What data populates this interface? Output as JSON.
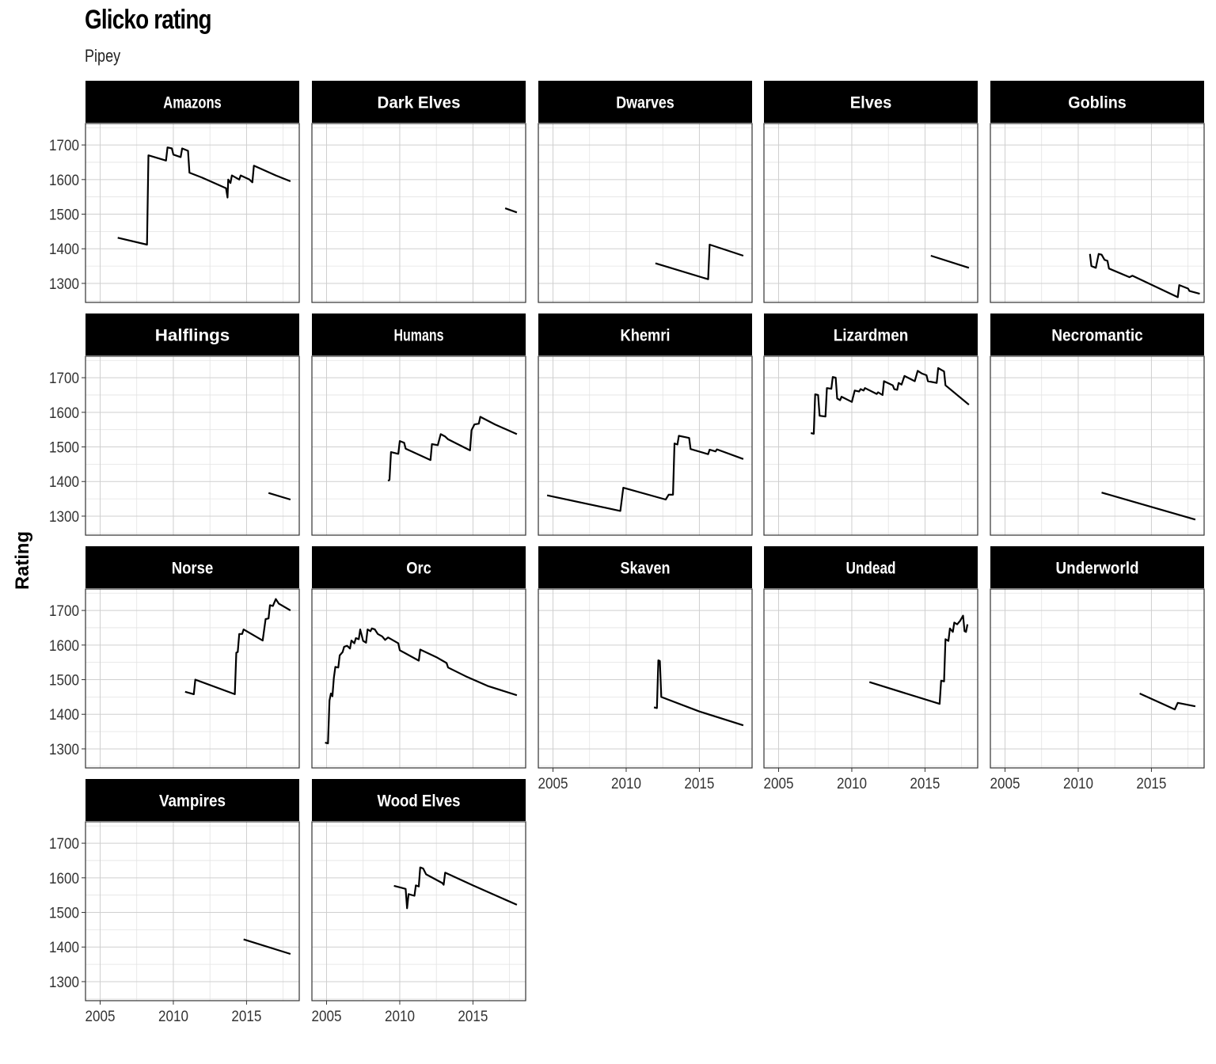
{
  "title": "Glicko rating",
  "subtitle": "Pipey",
  "colors": {
    "line": "#000000",
    "strip": "#000000",
    "strip_text": "#ffffff",
    "grid": "#cfcfcf",
    "border": "#333333"
  },
  "chart_data": {
    "type": "line",
    "ylabel": "Rating",
    "xlabel": "",
    "xlim": [
      2004,
      2018.6
    ],
    "ylim": [
      1245,
      1762
    ],
    "x_ticks": [
      2005,
      2010,
      2015
    ],
    "y_ticks": [
      1300,
      1400,
      1500,
      1600,
      1700
    ],
    "grid": true,
    "panels": [
      {
        "name": "Amazons",
        "points": [
          [
            2006.2,
            1432
          ],
          [
            2008.2,
            1412
          ],
          [
            2008.3,
            1670
          ],
          [
            2009.5,
            1655
          ],
          [
            2009.6,
            1693
          ],
          [
            2009.9,
            1690
          ],
          [
            2010.0,
            1672
          ],
          [
            2010.5,
            1665
          ],
          [
            2010.6,
            1690
          ],
          [
            2011.0,
            1683
          ],
          [
            2011.1,
            1620
          ],
          [
            2012.0,
            1605
          ],
          [
            2013.6,
            1575
          ],
          [
            2013.7,
            1548
          ],
          [
            2013.75,
            1600
          ],
          [
            2013.9,
            1590
          ],
          [
            2014.0,
            1612
          ],
          [
            2014.5,
            1600
          ],
          [
            2014.6,
            1612
          ],
          [
            2015.2,
            1600
          ],
          [
            2015.4,
            1592
          ],
          [
            2015.5,
            1640
          ],
          [
            2017.0,
            1612
          ],
          [
            2018.0,
            1595
          ]
        ]
      },
      {
        "name": "Dark Elves",
        "points": [
          [
            2017.2,
            1517
          ],
          [
            2018.0,
            1505
          ]
        ]
      },
      {
        "name": "Dwarves",
        "points": [
          [
            2012.0,
            1358
          ],
          [
            2015.6,
            1312
          ],
          [
            2015.7,
            1412
          ],
          [
            2018.0,
            1380
          ]
        ]
      },
      {
        "name": "Elves",
        "points": [
          [
            2015.4,
            1380
          ],
          [
            2018.0,
            1345
          ]
        ]
      },
      {
        "name": "Goblins",
        "points": [
          [
            2010.8,
            1385
          ],
          [
            2010.9,
            1350
          ],
          [
            2011.2,
            1345
          ],
          [
            2011.4,
            1385
          ],
          [
            2011.6,
            1383
          ],
          [
            2011.8,
            1368
          ],
          [
            2012.0,
            1365
          ],
          [
            2012.1,
            1343
          ],
          [
            2013.5,
            1318
          ],
          [
            2013.7,
            1322
          ],
          [
            2016.8,
            1260
          ],
          [
            2016.9,
            1295
          ],
          [
            2017.5,
            1285
          ],
          [
            2017.6,
            1278
          ],
          [
            2018.3,
            1270
          ]
        ]
      },
      {
        "name": "Halflings",
        "points": [
          [
            2016.5,
            1367
          ],
          [
            2018.0,
            1348
          ]
        ]
      },
      {
        "name": "Humans",
        "points": [
          [
            2009.2,
            1402
          ],
          [
            2009.3,
            1405
          ],
          [
            2009.4,
            1485
          ],
          [
            2009.9,
            1480
          ],
          [
            2010.0,
            1517
          ],
          [
            2010.3,
            1512
          ],
          [
            2010.4,
            1495
          ],
          [
            2012.1,
            1462
          ],
          [
            2012.2,
            1508
          ],
          [
            2012.6,
            1505
          ],
          [
            2012.8,
            1537
          ],
          [
            2013.1,
            1530
          ],
          [
            2013.3,
            1522
          ],
          [
            2014.8,
            1490
          ],
          [
            2014.9,
            1548
          ],
          [
            2015.1,
            1565
          ],
          [
            2015.4,
            1567
          ],
          [
            2015.5,
            1587
          ],
          [
            2016.5,
            1565
          ],
          [
            2018.0,
            1537
          ]
        ]
      },
      {
        "name": "Khemri",
        "points": [
          [
            2004.6,
            1360
          ],
          [
            2009.6,
            1315
          ],
          [
            2009.8,
            1382
          ],
          [
            2012.7,
            1348
          ],
          [
            2012.9,
            1362
          ],
          [
            2013.2,
            1362
          ],
          [
            2013.3,
            1510
          ],
          [
            2013.5,
            1507
          ],
          [
            2013.6,
            1532
          ],
          [
            2014.3,
            1526
          ],
          [
            2014.4,
            1494
          ],
          [
            2015.6,
            1479
          ],
          [
            2015.7,
            1492
          ],
          [
            2016.1,
            1487
          ],
          [
            2016.2,
            1493
          ],
          [
            2018.0,
            1465
          ]
        ]
      },
      {
        "name": "Lizardmen",
        "points": [
          [
            2007.2,
            1540
          ],
          [
            2007.4,
            1538
          ],
          [
            2007.5,
            1652
          ],
          [
            2007.7,
            1650
          ],
          [
            2007.8,
            1590
          ],
          [
            2008.2,
            1588
          ],
          [
            2008.3,
            1670
          ],
          [
            2008.6,
            1668
          ],
          [
            2008.7,
            1702
          ],
          [
            2008.9,
            1700
          ],
          [
            2009.0,
            1640
          ],
          [
            2009.2,
            1635
          ],
          [
            2009.3,
            1645
          ],
          [
            2010.0,
            1630
          ],
          [
            2010.2,
            1663
          ],
          [
            2010.5,
            1660
          ],
          [
            2010.6,
            1667
          ],
          [
            2010.8,
            1663
          ],
          [
            2010.9,
            1670
          ],
          [
            2011.7,
            1653
          ],
          [
            2011.8,
            1658
          ],
          [
            2012.1,
            1650
          ],
          [
            2012.2,
            1690
          ],
          [
            2012.8,
            1678
          ],
          [
            2012.9,
            1667
          ],
          [
            2013.1,
            1665
          ],
          [
            2013.2,
            1685
          ],
          [
            2013.4,
            1680
          ],
          [
            2013.6,
            1705
          ],
          [
            2014.3,
            1690
          ],
          [
            2014.5,
            1720
          ],
          [
            2014.8,
            1712
          ],
          [
            2015.1,
            1707
          ],
          [
            2015.2,
            1690
          ],
          [
            2015.8,
            1685
          ],
          [
            2015.9,
            1728
          ],
          [
            2016.3,
            1718
          ],
          [
            2016.4,
            1678
          ],
          [
            2018.0,
            1622
          ]
        ]
      },
      {
        "name": "Necromantic",
        "points": [
          [
            2011.6,
            1368
          ],
          [
            2018.0,
            1290
          ]
        ]
      },
      {
        "name": "Norse",
        "points": [
          [
            2010.8,
            1465
          ],
          [
            2011.4,
            1458
          ],
          [
            2011.5,
            1500
          ],
          [
            2014.2,
            1458
          ],
          [
            2014.3,
            1578
          ],
          [
            2014.4,
            1580
          ],
          [
            2014.5,
            1632
          ],
          [
            2014.7,
            1632
          ],
          [
            2014.8,
            1645
          ],
          [
            2016.1,
            1613
          ],
          [
            2016.3,
            1675
          ],
          [
            2016.5,
            1677
          ],
          [
            2016.6,
            1715
          ],
          [
            2016.8,
            1713
          ],
          [
            2017.0,
            1733
          ],
          [
            2017.2,
            1720
          ],
          [
            2018.0,
            1700
          ]
        ]
      },
      {
        "name": "Orc",
        "points": [
          [
            2004.9,
            1318
          ],
          [
            2005.1,
            1316
          ],
          [
            2005.2,
            1440
          ],
          [
            2005.3,
            1460
          ],
          [
            2005.4,
            1452
          ],
          [
            2005.5,
            1505
          ],
          [
            2005.6,
            1537
          ],
          [
            2005.8,
            1535
          ],
          [
            2005.9,
            1570
          ],
          [
            2006.1,
            1580
          ],
          [
            2006.2,
            1595
          ],
          [
            2006.4,
            1598
          ],
          [
            2006.6,
            1590
          ],
          [
            2006.7,
            1613
          ],
          [
            2006.9,
            1605
          ],
          [
            2007.0,
            1620
          ],
          [
            2007.2,
            1617
          ],
          [
            2007.3,
            1645
          ],
          [
            2007.5,
            1612
          ],
          [
            2007.7,
            1607
          ],
          [
            2007.8,
            1645
          ],
          [
            2008.0,
            1640
          ],
          [
            2008.1,
            1648
          ],
          [
            2008.3,
            1645
          ],
          [
            2008.5,
            1632
          ],
          [
            2008.8,
            1625
          ],
          [
            2009.0,
            1615
          ],
          [
            2009.2,
            1622
          ],
          [
            2009.9,
            1605
          ],
          [
            2010.0,
            1585
          ],
          [
            2011.3,
            1555
          ],
          [
            2011.4,
            1587
          ],
          [
            2012.5,
            1565
          ],
          [
            2013.2,
            1548
          ],
          [
            2013.3,
            1535
          ],
          [
            2014.5,
            1510
          ],
          [
            2016.0,
            1482
          ],
          [
            2018.0,
            1455
          ]
        ]
      },
      {
        "name": "Skaven",
        "points": [
          [
            2011.9,
            1420
          ],
          [
            2012.1,
            1418
          ],
          [
            2012.2,
            1556
          ],
          [
            2012.3,
            1554
          ],
          [
            2012.4,
            1450
          ],
          [
            2015.0,
            1408
          ],
          [
            2018.0,
            1368
          ]
        ]
      },
      {
        "name": "Undead",
        "points": [
          [
            2011.2,
            1493
          ],
          [
            2016.0,
            1430
          ],
          [
            2016.1,
            1497
          ],
          [
            2016.3,
            1495
          ],
          [
            2016.4,
            1617
          ],
          [
            2016.6,
            1612
          ],
          [
            2016.7,
            1648
          ],
          [
            2016.9,
            1638
          ],
          [
            2017.0,
            1665
          ],
          [
            2017.2,
            1660
          ],
          [
            2017.4,
            1670
          ],
          [
            2017.6,
            1685
          ],
          [
            2017.7,
            1640
          ],
          [
            2017.8,
            1638
          ],
          [
            2017.9,
            1660
          ]
        ]
      },
      {
        "name": "Underworld",
        "points": [
          [
            2014.2,
            1460
          ],
          [
            2016.6,
            1414
          ],
          [
            2016.8,
            1433
          ],
          [
            2018.0,
            1423
          ]
        ]
      },
      {
        "name": "Vampires",
        "points": [
          [
            2014.8,
            1422
          ],
          [
            2018.0,
            1380
          ]
        ]
      },
      {
        "name": "Wood Elves",
        "points": [
          [
            2009.6,
            1577
          ],
          [
            2010.4,
            1568
          ],
          [
            2010.5,
            1512
          ],
          [
            2010.6,
            1553
          ],
          [
            2011.0,
            1548
          ],
          [
            2011.1,
            1578
          ],
          [
            2011.3,
            1575
          ],
          [
            2011.4,
            1630
          ],
          [
            2011.6,
            1627
          ],
          [
            2011.8,
            1610
          ],
          [
            2012.9,
            1585
          ],
          [
            2013.0,
            1580
          ],
          [
            2013.1,
            1615
          ],
          [
            2015.0,
            1578
          ],
          [
            2018.0,
            1522
          ]
        ]
      }
    ]
  }
}
